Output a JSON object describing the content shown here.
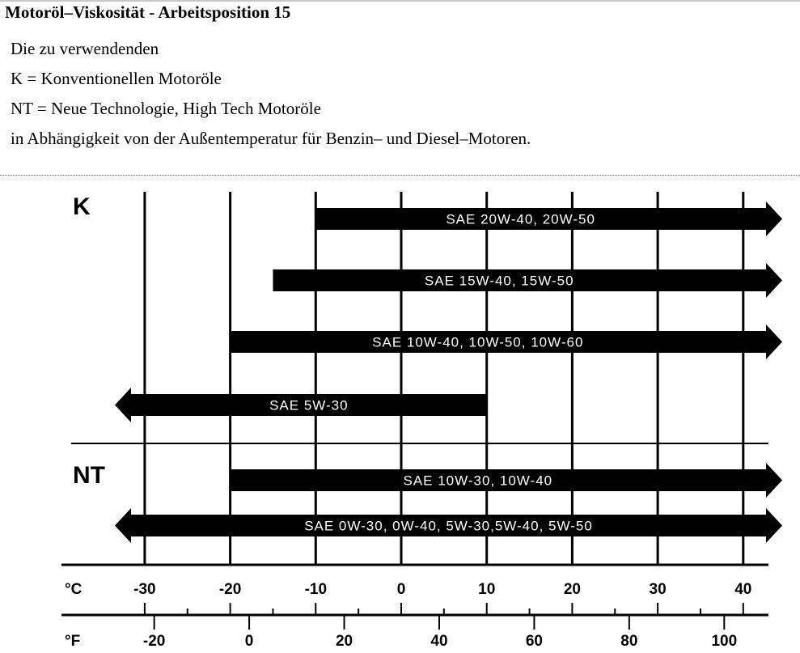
{
  "title": "Motoröl–Viskosität - Arbeitsposition 15",
  "intro": [
    "Die zu verwendenden",
    "K = Konventionellen Motoröle",
    "NT = Neue Technologie, High Tech Motoröle",
    "in Abhängigkeit von der Außentemperatur für Benzin– und Diesel–Motoren."
  ],
  "chart_data": {
    "type": "bar",
    "orientation": "horizontal-range",
    "xlabel_c": "°C",
    "xlabel_f": "°F",
    "xlim_c": [
      -34,
      43
    ],
    "c_ticks": [
      "-30",
      "-20",
      "-10",
      "0",
      "10",
      "20",
      "30",
      "40"
    ],
    "f_ticks": [
      "-20",
      "0",
      "20",
      "40",
      "60",
      "80",
      "100"
    ],
    "grid": true,
    "groups": [
      {
        "label": "K",
        "bars": [
          {
            "label": "SAE 20W-40, 20W-50",
            "from": -10,
            "to": null
          },
          {
            "label": "SAE 15W-40, 15W-50",
            "from": -15,
            "to": null
          },
          {
            "label": "SAE 10W-40, 10W-50, 10W-60",
            "from": -20,
            "to": null
          },
          {
            "label": "SAE 5W-30",
            "from": null,
            "to": 10
          }
        ]
      },
      {
        "label": "NT",
        "bars": [
          {
            "label": "SAE 10W-30, 10W-40",
            "from": -20,
            "to": null
          },
          {
            "label": "SAE 0W-30, 0W-40, 5W-30,5W-40, 5W-50",
            "from": null,
            "to": null
          }
        ]
      }
    ]
  }
}
